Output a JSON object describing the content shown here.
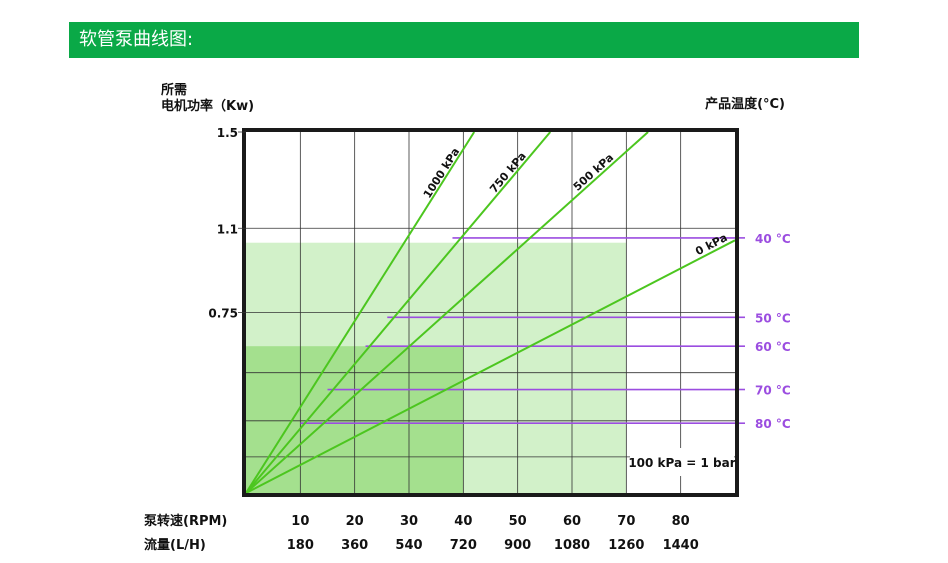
{
  "header": {
    "title": "软管泵曲线图:"
  },
  "colors": {
    "header_bg": "#0aa947",
    "line_green": "#4cc61f",
    "temp_purple": "#9b4de0",
    "region_light": "#d2f1c9",
    "region_dark": "#a4e08e"
  },
  "chart_data": {
    "type": "line",
    "ylabel_line1": "所需",
    "ylabel_line2": "电机功率（Kw)",
    "right_label": "产品温度(°C)",
    "y_ticks": [
      "1.5",
      "1.1",
      "0.75"
    ],
    "x_rows": [
      {
        "label": "泵转速(RPM)",
        "values": [
          "10",
          "20",
          "30",
          "40",
          "50",
          "60",
          "70",
          "80"
        ]
      },
      {
        "label": "流量(L/H)",
        "values": [
          "180",
          "360",
          "540",
          "720",
          "900",
          "1080",
          "1260",
          "1440"
        ]
      }
    ],
    "xlim": [
      0,
      90
    ],
    "ylim": [
      0,
      1.5
    ],
    "series": [
      {
        "name": "1000 kPa",
        "points": [
          [
            0,
            0
          ],
          [
            42,
            1.5
          ]
        ]
      },
      {
        "name": "750 kPa",
        "points": [
          [
            0,
            0
          ],
          [
            56,
            1.5
          ]
        ]
      },
      {
        "name": "500 kPa",
        "points": [
          [
            0,
            0
          ],
          [
            74,
            1.5
          ]
        ]
      },
      {
        "name": "0 kPa",
        "points": [
          [
            0,
            0
          ],
          [
            90,
            1.05
          ]
        ]
      }
    ],
    "temperature_limits": [
      {
        "label": "40 °C",
        "from": 38,
        "y": 1.06
      },
      {
        "label": "50 °C",
        "from": 26,
        "y": 0.73
      },
      {
        "label": "60 °C",
        "from": 22,
        "y": 0.61
      },
      {
        "label": "70 °C",
        "from": 15,
        "y": 0.43
      },
      {
        "label": "80 °C",
        "from": 10,
        "y": 0.29
      }
    ],
    "regions": [
      {
        "shade": "light",
        "x": [
          0,
          70
        ],
        "y": [
          0,
          1.04
        ]
      },
      {
        "shade": "dark",
        "x": [
          0,
          40
        ],
        "y": [
          0,
          0.61
        ]
      }
    ],
    "annotation": "100 kPa = 1 bar"
  }
}
